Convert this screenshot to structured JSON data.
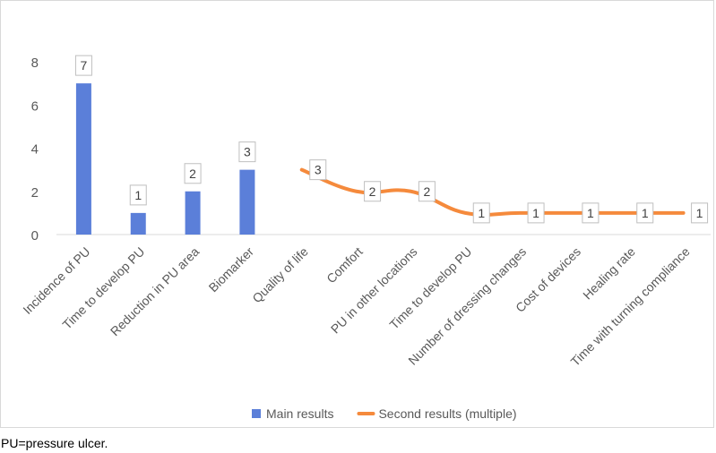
{
  "chart_data": {
    "type": "bar+line",
    "categories": [
      "Incidence of PU",
      "Time to develop PU",
      "Reduction in PU area",
      "Biomarker",
      "Quality of life",
      "Comfort",
      "PU in other locations",
      "Time to develop PU",
      "Number of dressing changes",
      "Cost of devices",
      "Healing rate",
      "Time with turning compliance"
    ],
    "series": [
      {
        "name": "Main results",
        "kind": "bar",
        "color": "#5b7fd9",
        "values": [
          7,
          1,
          2,
          3,
          null,
          null,
          null,
          null,
          null,
          null,
          null,
          null
        ]
      },
      {
        "name": "Second results (multiple)",
        "kind": "line",
        "color": "#f58a3c",
        "values": [
          null,
          null,
          null,
          null,
          3,
          2,
          2,
          1,
          1,
          1,
          1,
          1
        ]
      }
    ],
    "ylim": [
      0,
      8
    ],
    "yticks": [
      0,
      2,
      4,
      6,
      8
    ],
    "grid": false,
    "legend_position": "bottom",
    "title": "",
    "xlabel": "",
    "ylabel": ""
  },
  "footnote": "PU=pressure ulcer."
}
